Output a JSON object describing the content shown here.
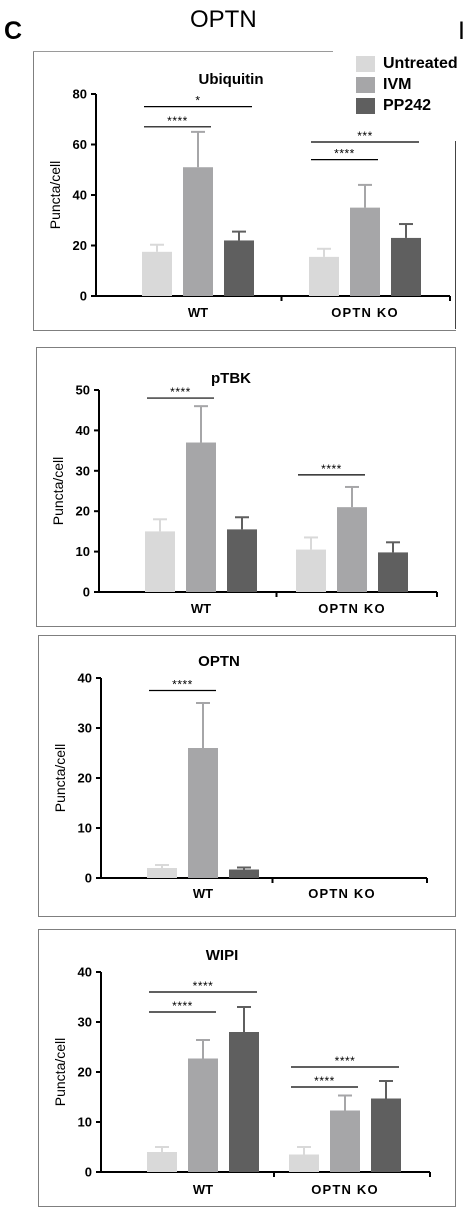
{
  "header": {
    "panel_letter": "C",
    "title": "OPTN",
    "cut_letter": "I"
  },
  "legend": [
    {
      "label": "Untreated",
      "color": "#d9d9d9"
    },
    {
      "label": "IVM",
      "color": "#a6a6a8"
    },
    {
      "label": "PP242",
      "color": "#5f5f5f"
    }
  ],
  "chart_data": [
    {
      "type": "bar",
      "title": "Ubiquitin",
      "ylabel": "Puncta/cell",
      "ylim": [
        0,
        80
      ],
      "yticks": [
        "0",
        "20",
        "40",
        "60",
        "80"
      ],
      "categories": [
        "WT",
        "OPTN KO"
      ],
      "series": [
        {
          "name": "Untreated",
          "values": [
            17.5,
            15.5
          ],
          "errors": [
            2.8,
            3.2
          ]
        },
        {
          "name": "IVM",
          "values": [
            51,
            35
          ],
          "errors": [
            14,
            9
          ]
        },
        {
          "name": "PP242",
          "values": [
            22,
            23
          ],
          "errors": [
            3.5,
            5.5
          ]
        }
      ],
      "significance": [
        {
          "group": 0,
          "from": 0,
          "to": 1,
          "label": "****",
          "y": 67
        },
        {
          "group": 0,
          "from": 0,
          "to": 2,
          "label": "*",
          "y": 75
        },
        {
          "group": 1,
          "from": 0,
          "to": 1,
          "label": "****",
          "y": 54
        },
        {
          "group": 1,
          "from": 0,
          "to": 2,
          "label": "***",
          "y": 61
        }
      ]
    },
    {
      "type": "bar",
      "title": "pTBK",
      "ylabel": "Puncta/cell",
      "ylim": [
        0,
        50
      ],
      "yticks": [
        "0",
        "10",
        "20",
        "30",
        "40",
        "50"
      ],
      "categories": [
        "WT",
        "OPTN KO"
      ],
      "series": [
        {
          "name": "Untreated",
          "values": [
            15,
            10.5
          ],
          "errors": [
            3,
            3
          ]
        },
        {
          "name": "IVM",
          "values": [
            37,
            21
          ],
          "errors": [
            9,
            5
          ]
        },
        {
          "name": "PP242",
          "values": [
            15.5,
            9.8
          ],
          "errors": [
            3,
            2.5
          ]
        }
      ],
      "significance": [
        {
          "group": 0,
          "from": 0,
          "to": 1,
          "label": "****",
          "y": 48
        },
        {
          "group": 1,
          "from": 0,
          "to": 1,
          "label": "****",
          "y": 29
        }
      ]
    },
    {
      "type": "bar",
      "title": "OPTN",
      "ylabel": "Puncta/cell",
      "ylim": [
        0,
        40
      ],
      "yticks": [
        "0",
        "10",
        "20",
        "30",
        "40"
      ],
      "categories": [
        "WT",
        "OPTN KO"
      ],
      "series": [
        {
          "name": "Untreated",
          "values": [
            2,
            0
          ],
          "errors": [
            0.6,
            0
          ]
        },
        {
          "name": "IVM",
          "values": [
            26,
            0
          ],
          "errors": [
            9,
            0
          ]
        },
        {
          "name": "PP242",
          "values": [
            1.7,
            0
          ],
          "errors": [
            0.4,
            0
          ]
        }
      ],
      "significance": [
        {
          "group": 0,
          "from": 0,
          "to": 1,
          "label": "****",
          "y": 37.5
        }
      ]
    },
    {
      "type": "bar",
      "title": "WIPI",
      "ylabel": "Puncta/cell",
      "ylim": [
        0,
        40
      ],
      "yticks": [
        "0",
        "10",
        "20",
        "30",
        "40"
      ],
      "categories": [
        "WT",
        "OPTN KO"
      ],
      "series": [
        {
          "name": "Untreated",
          "values": [
            4,
            3.5
          ],
          "errors": [
            1,
            1.5
          ]
        },
        {
          "name": "IVM",
          "values": [
            22.7,
            12.3
          ],
          "errors": [
            3.7,
            3
          ]
        },
        {
          "name": "PP242",
          "values": [
            28,
            14.7
          ],
          "errors": [
            5,
            3.5
          ]
        }
      ],
      "significance": [
        {
          "group": 0,
          "from": 0,
          "to": 1,
          "label": "****",
          "y": 32
        },
        {
          "group": 0,
          "from": 0,
          "to": 2,
          "label": "****",
          "y": 36
        },
        {
          "group": 1,
          "from": 0,
          "to": 1,
          "label": "****",
          "y": 17
        },
        {
          "group": 1,
          "from": 0,
          "to": 2,
          "label": "****",
          "y": 21
        }
      ]
    }
  ]
}
